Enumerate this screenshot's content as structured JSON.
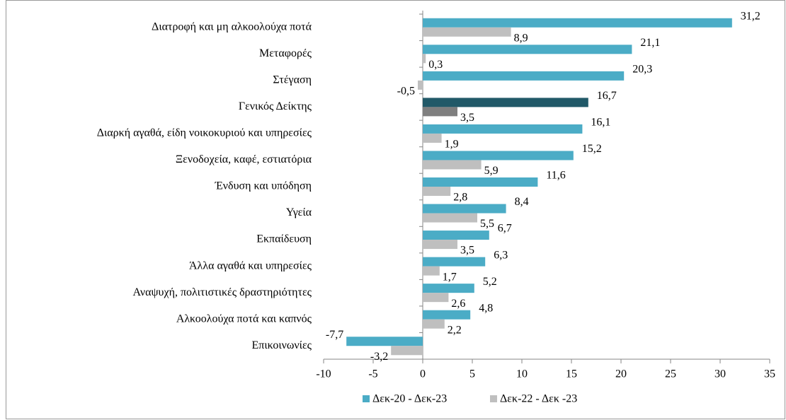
{
  "chart_data": {
    "type": "bar",
    "orientation": "horizontal",
    "categories": [
      "Διατροφή και μη αλκοολούχα ποτά",
      "Μεταφορές",
      "Στέγαση",
      "Γενικός Δείκτης",
      "Διαρκή αγαθά, είδη νοικοκυριού και υπηρεσίες",
      "Ξενοδοχεία, καφέ, εστιατόρια",
      "Ένδυση και υπόδηση",
      "Υγεία",
      "Εκπαίδευση",
      "Άλλα αγαθά και υπηρεσίες",
      "Αναψυχή, πολιτιστικές δραστηριότητες",
      "Αλκοολούχα ποτά και καπνός",
      "Επικοινωνίες"
    ],
    "series": [
      {
        "name": "Δεκ-20 - Δεκ-23",
        "color": "#4bacc6",
        "colors": [
          "#4bacc6",
          "#4bacc6",
          "#4bacc6",
          "#215968",
          "#4bacc6",
          "#4bacc6",
          "#4bacc6",
          "#4bacc6",
          "#4bacc6",
          "#4bacc6",
          "#4bacc6",
          "#4bacc6",
          "#4bacc6"
        ],
        "values": [
          31.2,
          21.1,
          20.3,
          16.7,
          16.1,
          15.2,
          11.6,
          8.4,
          6.7,
          6.3,
          5.2,
          4.8,
          -7.7
        ],
        "value_labels": [
          "31,2",
          "21,1",
          "20,3",
          "16,7",
          "16,1",
          "15,2",
          "11,6",
          "8,4",
          "6,7",
          "6,3",
          "5,2",
          "4,8",
          "-7,7"
        ]
      },
      {
        "name": "Δεκ-22 - Δεκ -23",
        "color": "#bfbfbf",
        "colors": [
          "#bfbfbf",
          "#bfbfbf",
          "#bfbfbf",
          "#7f7f7f",
          "#bfbfbf",
          "#bfbfbf",
          "#bfbfbf",
          "#bfbfbf",
          "#bfbfbf",
          "#bfbfbf",
          "#bfbfbf",
          "#bfbfbf",
          "#bfbfbf"
        ],
        "values": [
          8.9,
          0.3,
          -0.5,
          3.5,
          1.9,
          5.9,
          2.8,
          5.5,
          3.5,
          1.7,
          2.6,
          2.2,
          -3.2
        ],
        "value_labels": [
          "8,9",
          "0,3",
          "-0,5",
          "3,5",
          "1,9",
          "5,9",
          "2,8",
          "5,5",
          "3,5",
          "1,7",
          "2,6",
          "2,2",
          "-3,2"
        ]
      }
    ],
    "xlim": [
      -10,
      35
    ],
    "xticks": [
      -10,
      -5,
      0,
      5,
      10,
      15,
      20,
      25,
      30,
      35
    ],
    "grid": false,
    "legend": "bottom"
  }
}
